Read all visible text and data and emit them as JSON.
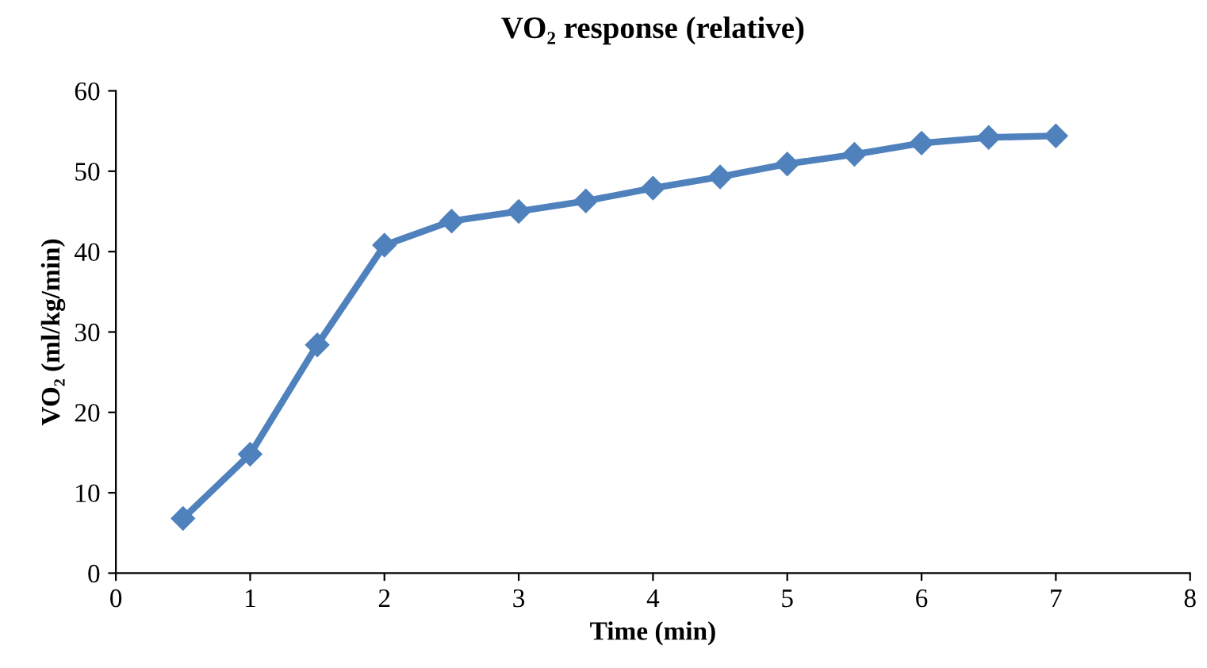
{
  "chart_data": {
    "type": "line",
    "title": "VO₂ response (relative)",
    "xlabel": "Time (min)",
    "ylabel": "VO₂ (ml/kg/min)",
    "x": [
      0.5,
      1,
      1.5,
      2,
      2.5,
      3,
      3.5,
      4,
      4.5,
      5,
      5.5,
      6,
      6.5,
      7
    ],
    "series": [
      {
        "color": "#4f81bd",
        "values": [
          6.8,
          14.8,
          28.4,
          40.8,
          43.8,
          45.0,
          46.3,
          47.9,
          49.3,
          50.9,
          52.1,
          53.5,
          54.2,
          54.4
        ]
      }
    ],
    "xlim": [
      0,
      8
    ],
    "xticks": [
      0,
      1,
      2,
      3,
      4,
      5,
      6,
      7,
      8
    ],
    "ylim": [
      0,
      60
    ],
    "yticks": [
      0,
      10,
      20,
      30,
      40,
      50,
      60
    ],
    "grid": false,
    "legend": false,
    "marker": "diamond",
    "line_style": "solid"
  }
}
